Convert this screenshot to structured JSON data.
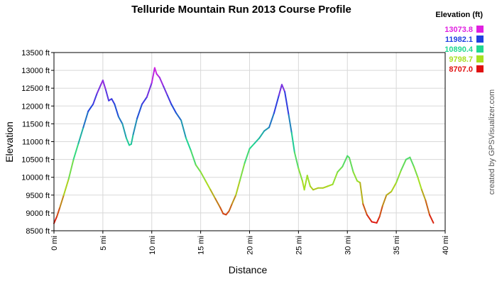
{
  "chart_data": {
    "type": "line",
    "title": "Telluride Mountain Run 2013 Course Profile",
    "xlabel": "Distance",
    "ylabel": "Elevation",
    "xlim": [
      0,
      40
    ],
    "ylim": [
      8500,
      13500
    ],
    "x_ticks": [
      0,
      5,
      10,
      15,
      20,
      25,
      30,
      35,
      40
    ],
    "x_tick_labels": [
      "0 mi",
      "5 mi",
      "10 mi",
      "15 mi",
      "20 mi",
      "25 mi",
      "30 mi",
      "35 mi",
      "40 mi"
    ],
    "y_ticks": [
      8500,
      9000,
      9500,
      10000,
      10500,
      11000,
      11500,
      12000,
      12500,
      13000,
      13500
    ],
    "y_tick_labels": [
      "8500 ft",
      "9000 ft",
      "9500 ft",
      "10000 ft",
      "10500 ft",
      "11000 ft",
      "11500 ft",
      "12000 ft",
      "12500 ft",
      "13000 ft",
      "13500 ft"
    ],
    "grid": true,
    "legend_position": "top-right",
    "legend_title": "Elevation (ft)",
    "legend": [
      {
        "label": "13073.8",
        "color": "#e020e0"
      },
      {
        "label": "11982.1",
        "color": "#2040e0"
      },
      {
        "label": "10890.4",
        "color": "#20d890"
      },
      {
        "label": "9798.7",
        "color": "#a8e020"
      },
      {
        "label": "8707.0",
        "color": "#e01010"
      }
    ],
    "series": [
      {
        "x": [
          0,
          0.3,
          0.6,
          1.0,
          1.5,
          2.0,
          2.5,
          3.0,
          3.5,
          4.0,
          4.4,
          4.8,
          5.0,
          5.3,
          5.6,
          5.9,
          6.2,
          6.6,
          7.0,
          7.4,
          7.7,
          7.9,
          8.1,
          8.5,
          9.0,
          9.5,
          10.0,
          10.3,
          10.5,
          10.8,
          11.2,
          11.6,
          12.0,
          12.5,
          13.0,
          13.5,
          14.0,
          14.5,
          15.0,
          15.5,
          16.0,
          16.5,
          17.0,
          17.3,
          17.6,
          17.9,
          18.2,
          18.6,
          19.0,
          19.5,
          20.0,
          20.5,
          21.0,
          21.5,
          22.0,
          22.5,
          23.0,
          23.3,
          23.6,
          24.0,
          24.3,
          24.6,
          25.0,
          25.4,
          25.6,
          25.9,
          26.2,
          26.5,
          27.0,
          27.5,
          28.0,
          28.5,
          29.0,
          29.5,
          30.0,
          30.2,
          30.6,
          31.0,
          31.3,
          31.6,
          32.0,
          32.5,
          33.0,
          33.3,
          33.6,
          34.0,
          34.5,
          35.0,
          35.5,
          36.0,
          36.4,
          36.8,
          37.2,
          37.6,
          38.0,
          38.4,
          38.8
        ],
        "y": [
          8707,
          8900,
          9150,
          9500,
          9950,
          10500,
          10950,
          11400,
          11850,
          12050,
          12350,
          12600,
          12720,
          12450,
          12150,
          12200,
          12050,
          11700,
          11500,
          11100,
          10900,
          10930,
          11200,
          11650,
          12050,
          12250,
          12650,
          13070,
          12900,
          12800,
          12550,
          12300,
          12050,
          11800,
          11600,
          11100,
          10750,
          10350,
          10150,
          9900,
          9650,
          9400,
          9150,
          8980,
          8950,
          9050,
          9250,
          9500,
          9900,
          10400,
          10800,
          10950,
          11100,
          11300,
          11400,
          11800,
          12300,
          12600,
          12400,
          11750,
          11250,
          10700,
          10250,
          9900,
          9650,
          10050,
          9750,
          9650,
          9700,
          9700,
          9750,
          9800,
          10150,
          10300,
          10600,
          10550,
          10150,
          9900,
          9850,
          9250,
          8950,
          8750,
          8720,
          8900,
          9200,
          9500,
          9600,
          9850,
          10200,
          10500,
          10560,
          10300,
          10000,
          9650,
          9350,
          8950,
          8720
        ]
      }
    ],
    "credit": "created by GPSVisualizer.com"
  }
}
